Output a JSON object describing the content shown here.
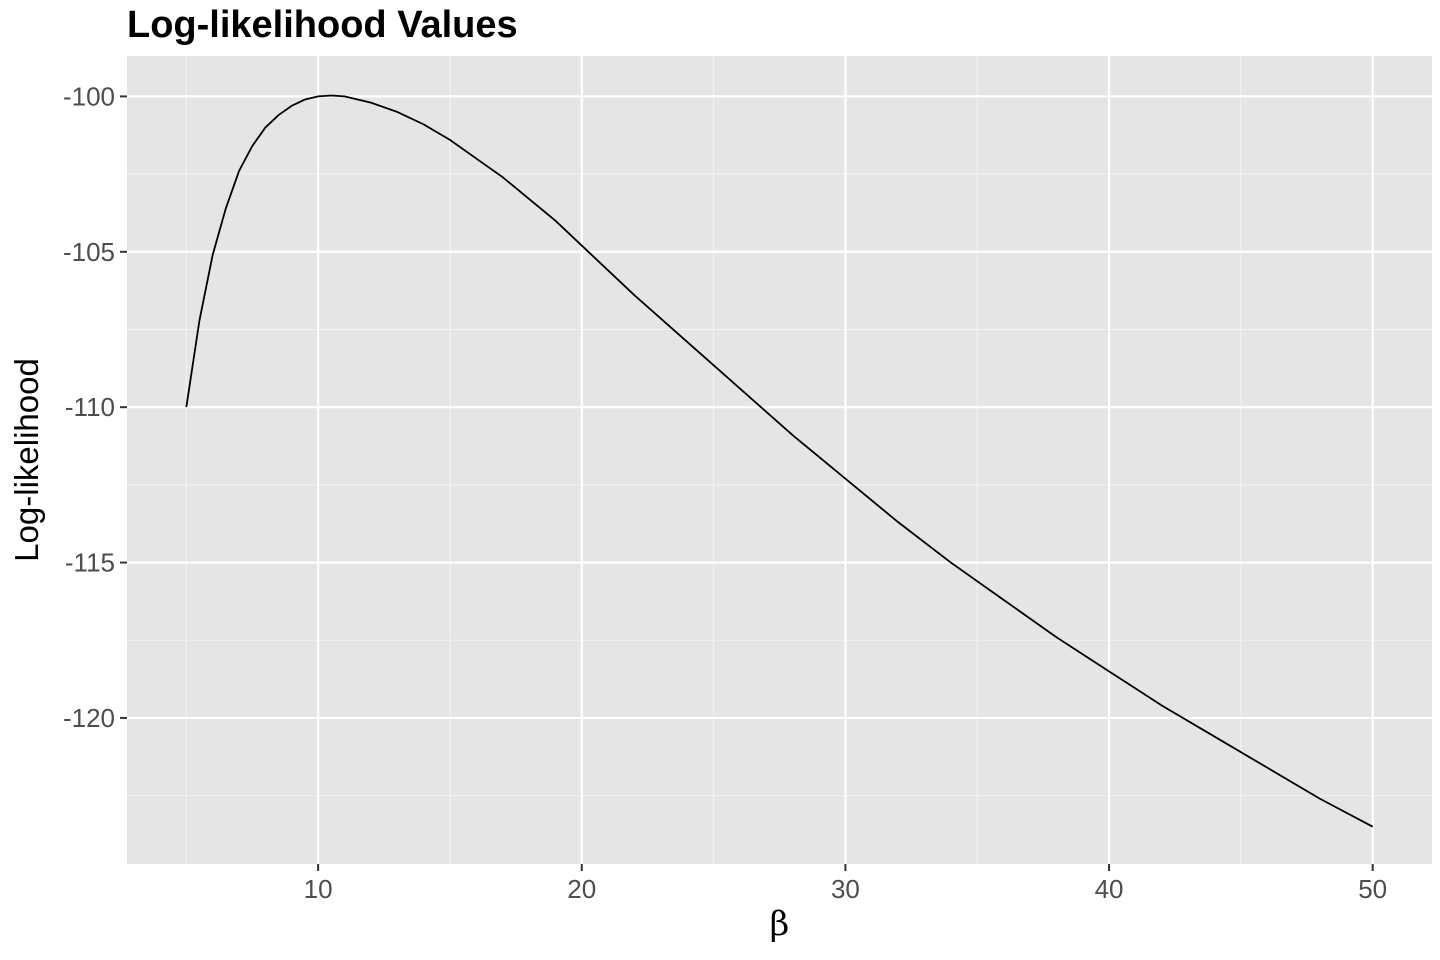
{
  "chart_data": {
    "type": "line",
    "title": "Log-likelihood Values",
    "xlabel": "β",
    "ylabel": "Log-likelihood",
    "xlim": [
      2.75,
      52.25
    ],
    "ylim": [
      -124.7,
      -98.7
    ],
    "x_ticks": [
      10,
      20,
      30,
      40,
      50
    ],
    "x_tick_labels": [
      "10",
      "20",
      "30",
      "40",
      "50"
    ],
    "y_ticks": [
      -100,
      -105,
      -110,
      -115,
      -120
    ],
    "y_tick_labels": [
      "-100",
      "-105",
      "-110",
      "-115",
      "-120"
    ],
    "grid": true,
    "legend": "none",
    "colors": {
      "panel": "#e5e5e5",
      "grid_major": "#ffffff",
      "grid_minor": "#f2f2f2",
      "line": "#000000"
    },
    "series": [
      {
        "x": [
          5,
          5.5,
          6,
          6.5,
          7,
          7.5,
          8,
          8.5,
          9,
          9.5,
          10,
          10.5,
          11,
          11.5,
          12,
          13,
          14,
          15,
          16,
          17,
          18,
          19,
          20,
          22,
          24,
          26,
          28,
          30,
          32,
          34,
          36,
          38,
          40,
          42,
          44,
          46,
          48,
          50
        ],
        "y": [
          -110.0,
          -107.2,
          -105.1,
          -103.6,
          -102.4,
          -101.6,
          -101.0,
          -100.6,
          -100.3,
          -100.1,
          -100.0,
          -99.97,
          -100.0,
          -100.1,
          -100.2,
          -100.5,
          -100.9,
          -101.4,
          -102.0,
          -102.6,
          -103.3,
          -104.0,
          -104.8,
          -106.4,
          -107.9,
          -109.4,
          -110.9,
          -112.3,
          -113.7,
          -115.0,
          -116.2,
          -117.4,
          -118.5,
          -119.6,
          -120.6,
          -121.6,
          -122.6,
          -123.5
        ]
      }
    ]
  }
}
